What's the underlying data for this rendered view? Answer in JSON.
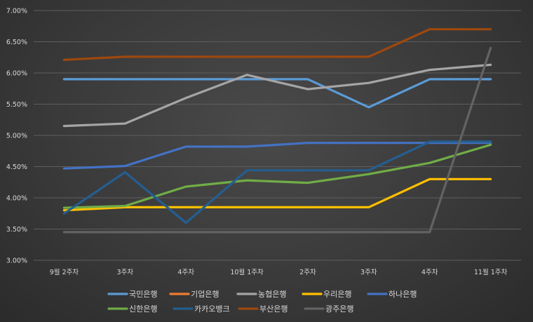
{
  "chart_data": {
    "type": "line",
    "title": "",
    "xlabel": "",
    "ylabel": "",
    "categories": [
      "9월 2주차",
      "3주차",
      "4주차",
      "10월 1주차",
      "2주차",
      "3주차",
      "4주차",
      "11월 1주차"
    ],
    "y_ticks": [
      "3.00%",
      "3.50%",
      "4.00%",
      "4.50%",
      "5.00%",
      "5.50%",
      "6.00%",
      "6.50%",
      "7.00%"
    ],
    "ylim": [
      3.0,
      7.0
    ],
    "grid": "horizontal",
    "legend_position": "bottom",
    "series": [
      {
        "name": "국민은행",
        "color": "#5b9bd5",
        "values": [
          5.9,
          5.9,
          5.9,
          5.9,
          5.9,
          5.45,
          5.9,
          5.9
        ]
      },
      {
        "name": "기업은행",
        "color": "#ed7d31",
        "values": [
          null,
          null,
          null,
          null,
          null,
          null,
          null,
          null
        ]
      },
      {
        "name": "농협은행",
        "color": "#a5a5a5",
        "values": [
          5.15,
          5.19,
          5.6,
          5.97,
          5.74,
          5.84,
          6.05,
          6.13
        ]
      },
      {
        "name": "우리은행",
        "color": "#ffc000",
        "values": [
          3.8,
          3.85,
          3.85,
          3.85,
          3.85,
          3.85,
          4.3,
          4.3
        ]
      },
      {
        "name": "하나은행",
        "color": "#4472c4",
        "values": [
          4.47,
          4.51,
          4.82,
          4.82,
          4.88,
          4.88,
          4.88,
          4.88
        ]
      },
      {
        "name": "신한은행",
        "color": "#70ad47",
        "values": [
          3.84,
          3.87,
          4.18,
          4.28,
          4.24,
          4.38,
          4.56,
          4.85
        ]
      },
      {
        "name": "카카오뱅크",
        "color": "#255e91",
        "values": [
          3.75,
          4.41,
          3.6,
          4.44,
          4.44,
          4.44,
          4.9,
          4.9
        ]
      },
      {
        "name": "부산은행",
        "color": "#9e480e",
        "values": [
          6.21,
          6.26,
          6.26,
          6.26,
          6.26,
          6.26,
          6.7,
          6.7
        ]
      },
      {
        "name": "광주은행",
        "color": "#636363",
        "values": [
          3.45,
          3.45,
          3.45,
          3.45,
          3.45,
          3.45,
          3.45,
          6.4
        ]
      }
    ]
  }
}
